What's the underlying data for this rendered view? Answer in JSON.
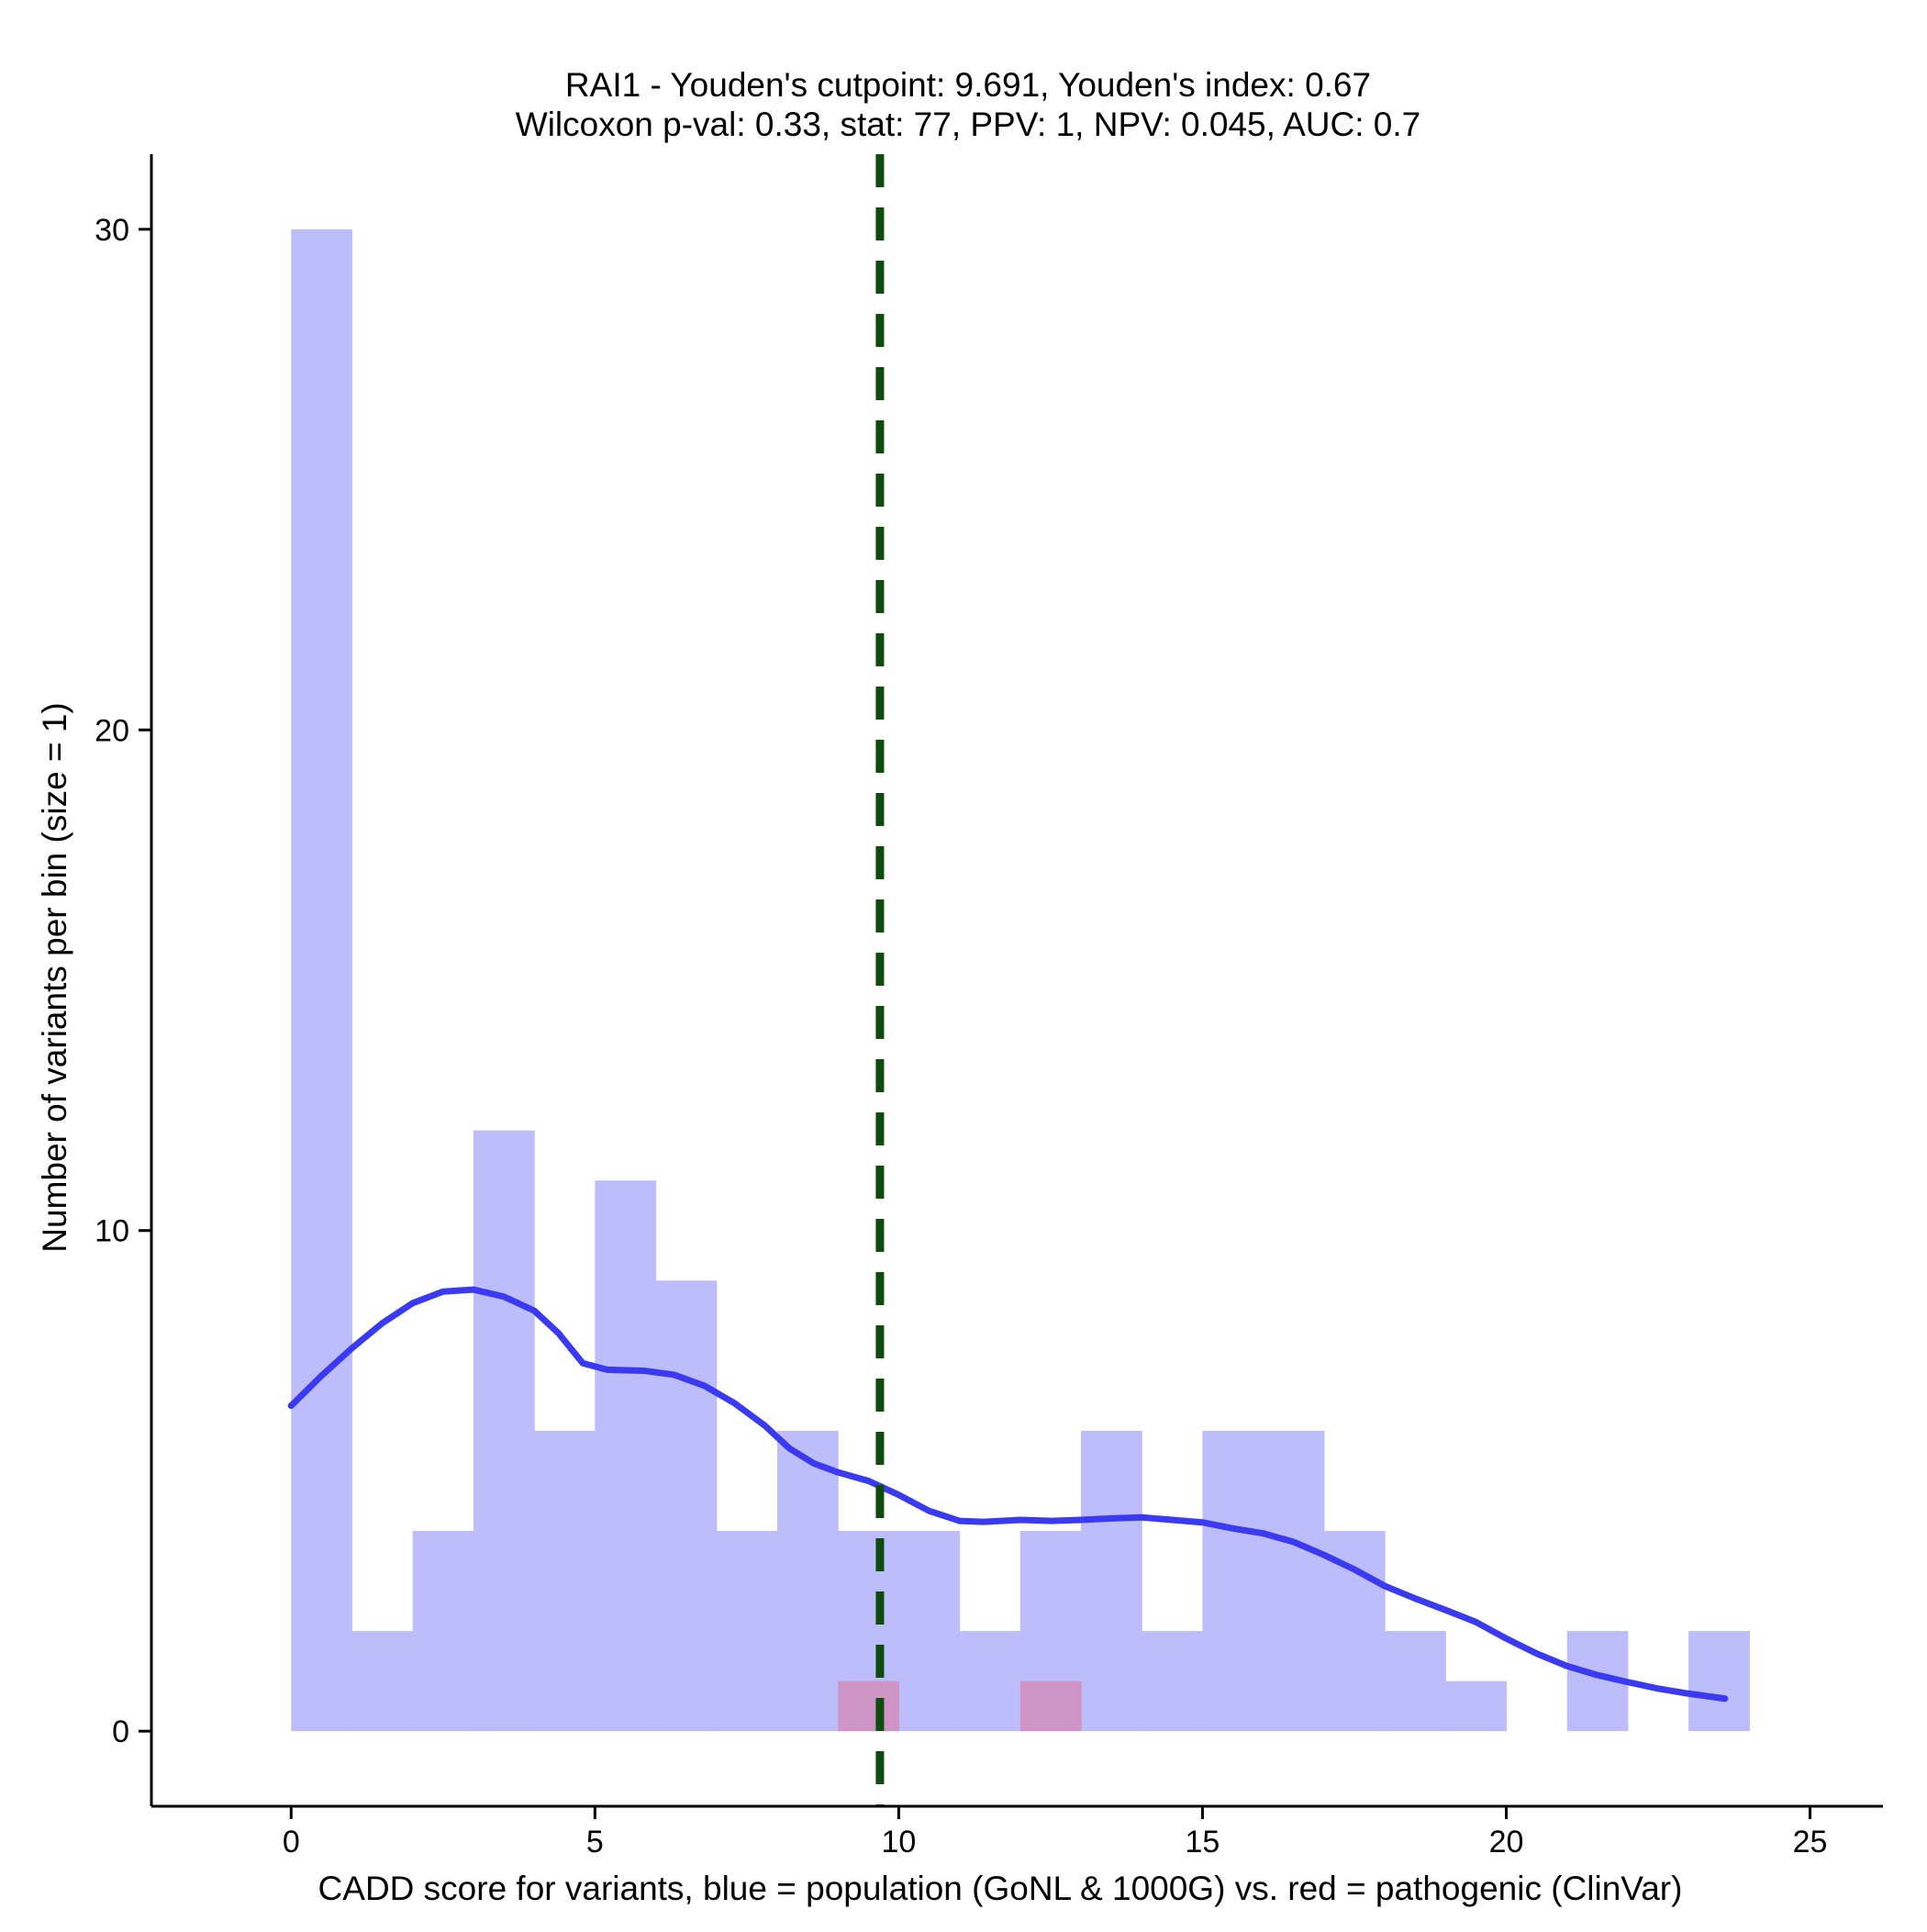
{
  "chart_data": {
    "type": "histogram",
    "title": {
      "line1": "RAI1 - Youden's cutpoint: 9.691, Youden's index: 0.67",
      "line2": "Wilcoxon p-val: 0.33, stat: 77, PPV: 1, NPV: 0.045, AUC: 0.7"
    },
    "xlabel": "CADD score for variants, blue = population (GoNL & 1000G) vs. red = pathogenic (ClinVar)",
    "ylabel": "Number of variants per bin (size = 1)",
    "xlim": [
      -2.3,
      26.2
    ],
    "ylim": [
      -1.5,
      31.5
    ],
    "x_ticks": [
      {
        "value": 0,
        "label": "0"
      },
      {
        "value": 5,
        "label": "5"
      },
      {
        "value": 10,
        "label": "10"
      },
      {
        "value": 15,
        "label": "15"
      },
      {
        "value": 20,
        "label": "20"
      },
      {
        "value": 25,
        "label": "25"
      }
    ],
    "y_ticks": [
      {
        "value": 0,
        "label": "0"
      },
      {
        "value": 10,
        "label": "10"
      },
      {
        "value": 20,
        "label": "20"
      },
      {
        "value": 30,
        "label": "30"
      }
    ],
    "bin_width": 1,
    "series": [
      {
        "name": "population (GoNL & 1000G)",
        "color": "#bdbdfb",
        "bins": [
          {
            "start": 0,
            "count": 30
          },
          {
            "start": 1,
            "count": 2
          },
          {
            "start": 2,
            "count": 4
          },
          {
            "start": 3,
            "count": 12
          },
          {
            "start": 4,
            "count": 6
          },
          {
            "start": 5,
            "count": 11
          },
          {
            "start": 6,
            "count": 9
          },
          {
            "start": 7,
            "count": 4
          },
          {
            "start": 8,
            "count": 6
          },
          {
            "start": 9,
            "count": 4
          },
          {
            "start": 10,
            "count": 4
          },
          {
            "start": 11,
            "count": 2
          },
          {
            "start": 12,
            "count": 4
          },
          {
            "start": 13,
            "count": 6
          },
          {
            "start": 14,
            "count": 2
          },
          {
            "start": 15,
            "count": 6
          },
          {
            "start": 16,
            "count": 6
          },
          {
            "start": 17,
            "count": 4
          },
          {
            "start": 18,
            "count": 2
          },
          {
            "start": 19,
            "count": 1
          },
          {
            "start": 20,
            "count": 0
          },
          {
            "start": 21,
            "count": 2
          },
          {
            "start": 22,
            "count": 0
          },
          {
            "start": 23,
            "count": 2
          }
        ]
      },
      {
        "name": "pathogenic (ClinVar)",
        "color": "#cf94c6",
        "bins": [
          {
            "start": 9,
            "count": 1
          },
          {
            "start": 12,
            "count": 1
          }
        ]
      }
    ],
    "density_curve": {
      "color": "#3a3af2",
      "points": [
        [
          0.0,
          6.5
        ],
        [
          0.5,
          7.1
        ],
        [
          1.0,
          7.65
        ],
        [
          1.5,
          8.15
        ],
        [
          2.0,
          8.55
        ],
        [
          2.5,
          8.78
        ],
        [
          3.0,
          8.82
        ],
        [
          3.5,
          8.68
        ],
        [
          4.0,
          8.4
        ],
        [
          4.4,
          7.95
        ],
        [
          4.8,
          7.35
        ],
        [
          5.2,
          7.22
        ],
        [
          5.8,
          7.2
        ],
        [
          6.3,
          7.12
        ],
        [
          6.8,
          6.9
        ],
        [
          7.3,
          6.55
        ],
        [
          7.8,
          6.1
        ],
        [
          8.2,
          5.65
        ],
        [
          8.6,
          5.35
        ],
        [
          9.0,
          5.17
        ],
        [
          9.5,
          5.0
        ],
        [
          10.0,
          4.72
        ],
        [
          10.5,
          4.4
        ],
        [
          11.0,
          4.2
        ],
        [
          11.4,
          4.18
        ],
        [
          12.0,
          4.22
        ],
        [
          12.5,
          4.2
        ],
        [
          13.0,
          4.22
        ],
        [
          13.5,
          4.25
        ],
        [
          14.0,
          4.27
        ],
        [
          14.5,
          4.22
        ],
        [
          15.0,
          4.17
        ],
        [
          15.5,
          4.05
        ],
        [
          16.0,
          3.95
        ],
        [
          16.5,
          3.78
        ],
        [
          17.0,
          3.52
        ],
        [
          17.5,
          3.23
        ],
        [
          18.0,
          2.9
        ],
        [
          18.5,
          2.65
        ],
        [
          19.0,
          2.42
        ],
        [
          19.5,
          2.18
        ],
        [
          20.0,
          1.85
        ],
        [
          20.5,
          1.55
        ],
        [
          21.0,
          1.3
        ],
        [
          21.5,
          1.12
        ],
        [
          22.0,
          0.98
        ],
        [
          22.5,
          0.85
        ],
        [
          23.0,
          0.75
        ],
        [
          23.6,
          0.65
        ]
      ]
    },
    "cutpoint_line": {
      "x": 9.691,
      "color": "#0d4c0d",
      "style": "dashed"
    }
  }
}
